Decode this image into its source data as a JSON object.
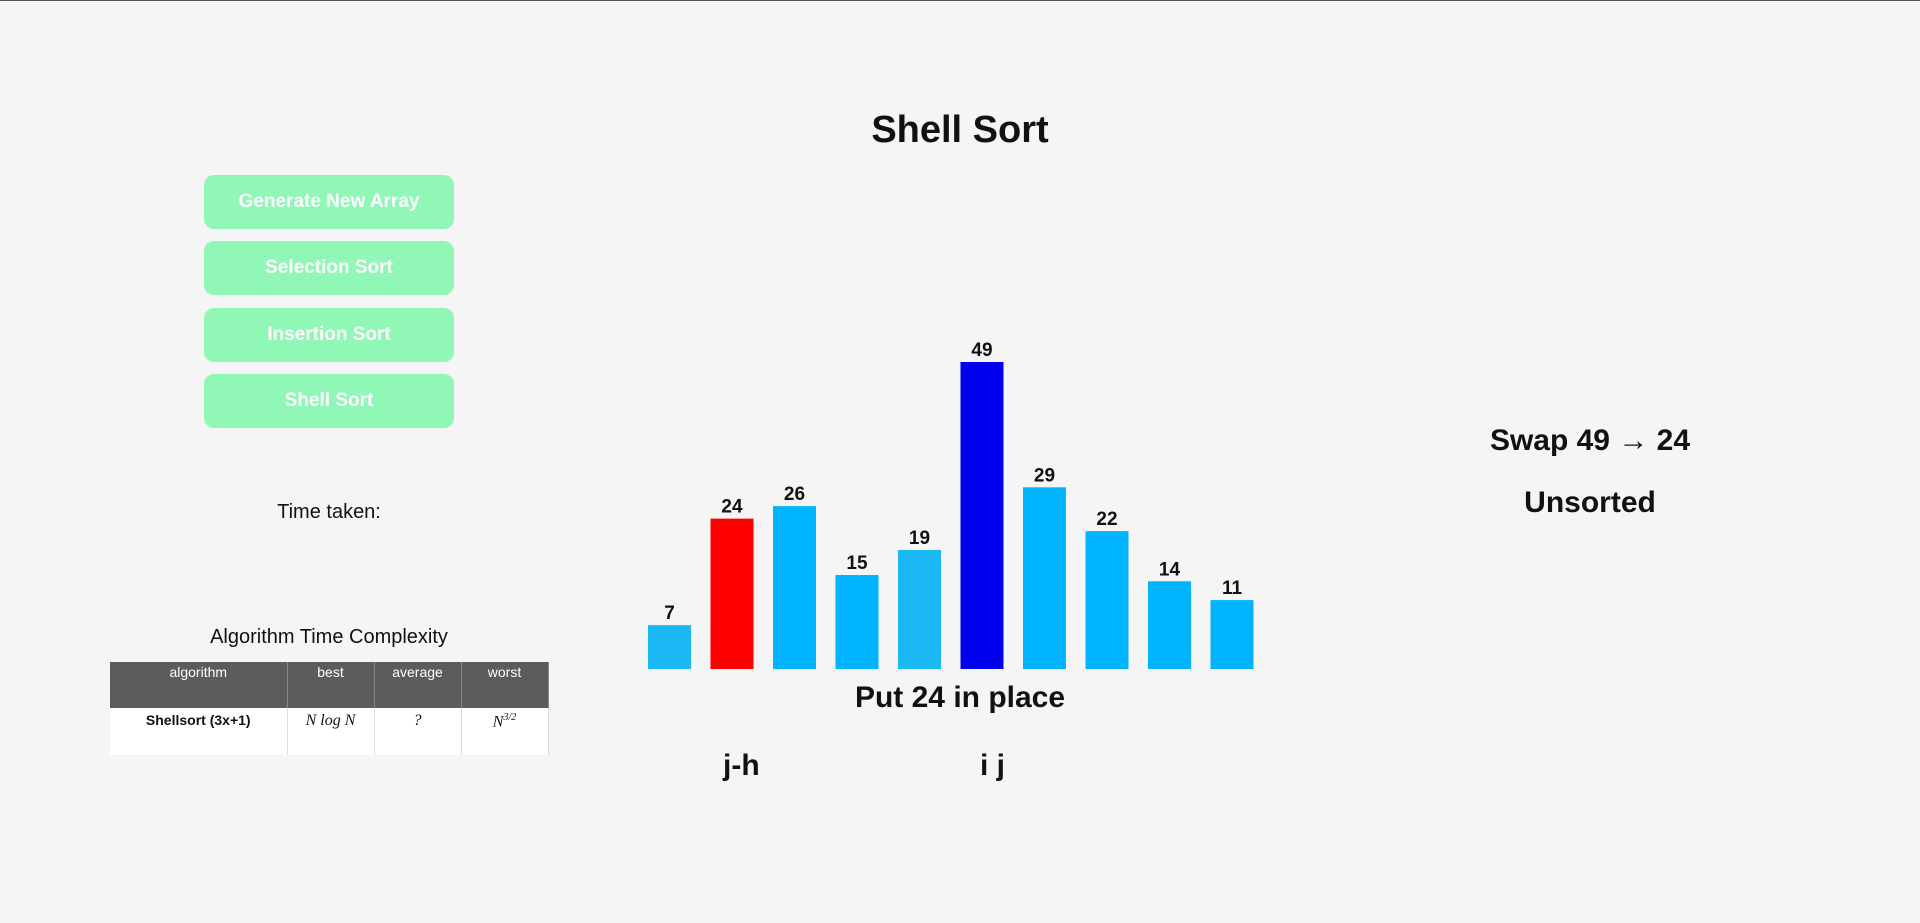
{
  "page_title": "Shell Sort",
  "buttons": {
    "generate": "Generate New Array",
    "selection": "Selection Sort",
    "insertion": "Insertion Sort",
    "shell": "Shell Sort"
  },
  "time_taken_label": "Time taken:",
  "complexity": {
    "title": "Algorithm Time Complexity",
    "headers": [
      "algorithm",
      "best",
      "average",
      "worst"
    ],
    "row": {
      "algorithm": "Shellsort (3x+1)",
      "best": "N log N",
      "average": "?",
      "worst": "N 3/2"
    }
  },
  "chart_data": {
    "type": "bar",
    "values": [
      7,
      24,
      26,
      15,
      19,
      49,
      29,
      22,
      14,
      11
    ],
    "value_labels": [
      "7",
      "24",
      "26",
      "15",
      "19",
      "49",
      "29",
      "22",
      "14",
      "11"
    ],
    "colors": [
      "#1ab8f5",
      "#ff0000",
      "#00b4ff",
      "#00b4ff",
      "#1ab8f5",
      "#0000ee",
      "#00b4ff",
      "#00b4ff",
      "#00b4ff",
      "#00b4ff"
    ],
    "ylim": [
      0,
      49
    ]
  },
  "step_message": "Put 24 in place",
  "pointers": {
    "left": "j-h",
    "right": "i j"
  },
  "status": {
    "action": "Swap 49 → 24",
    "state": "Unsorted"
  }
}
